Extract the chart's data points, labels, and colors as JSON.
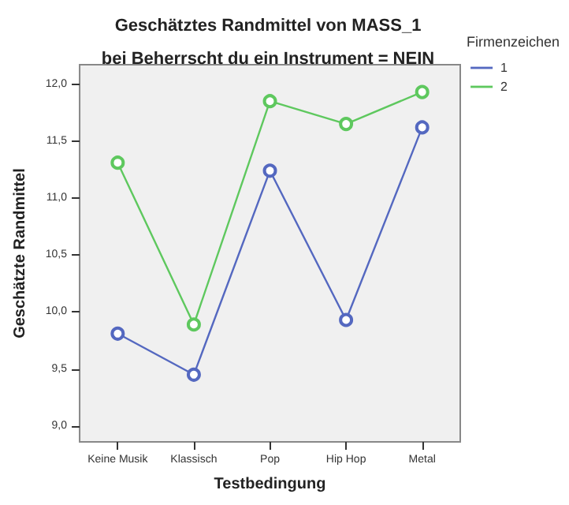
{
  "chart_data": {
    "type": "line",
    "title": "Geschätztes Randmittel von MASS_1",
    "subtitle": "bei Beherrscht du ein Instrument = NEIN",
    "xlabel": "Testbedingung",
    "ylabel": "Geschätzte Randmittel",
    "legend_title": "Firmenzeichen",
    "categories": [
      "Keine Musik",
      "Klassisch",
      "Pop",
      "Hip Hop",
      "Metal"
    ],
    "series": [
      {
        "name": "1",
        "color": "#5468c0",
        "values": [
          9.81,
          9.45,
          11.24,
          9.93,
          11.62
        ]
      },
      {
        "name": "2",
        "color": "#5ec85e",
        "values": [
          11.31,
          9.89,
          11.85,
          11.65,
          11.93
        ]
      }
    ],
    "ylim": [
      8.86,
      12.17
    ],
    "yticks": [
      {
        "value": 9,
        "label": "9,0"
      },
      {
        "value": 9.5,
        "label": "9,5"
      },
      {
        "value": 10,
        "label": "10,0"
      },
      {
        "value": 10.5,
        "label": "10,5"
      },
      {
        "value": 11,
        "label": "11,0"
      },
      {
        "value": 11.5,
        "label": "11,5"
      },
      {
        "value": 12,
        "label": "12,0"
      }
    ],
    "grid": false,
    "legend": "top right",
    "marker": "circle",
    "line_style": "solid"
  }
}
